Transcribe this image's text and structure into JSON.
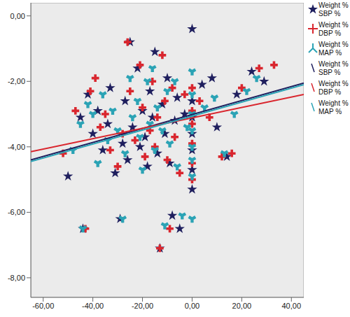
{
  "chart_data": {
    "type": "scatter",
    "grid": false,
    "legend": "right",
    "xlim": [
      -65,
      45
    ],
    "xticks": [
      {
        "value": -60,
        "label": "-60,00"
      },
      {
        "value": -40,
        "label": "-40,00"
      },
      {
        "value": -20,
        "label": "-20,00"
      },
      {
        "value": 0,
        "label": "0,00"
      },
      {
        "value": 20,
        "label": "20,00"
      },
      {
        "value": 40,
        "label": "40,00"
      }
    ],
    "ylim": [
      -8.6,
      0.4
    ],
    "yticks": [
      {
        "value": 0,
        "label": "0,00"
      },
      {
        "value": -2,
        "label": "-2,00"
      },
      {
        "value": -4,
        "label": "-4,00"
      },
      {
        "value": -6,
        "label": "-6,00"
      },
      {
        "value": -8,
        "label": "-8,00"
      }
    ],
    "series": [
      {
        "name": "Weight % SBP %",
        "type": "scatter",
        "marker": "star",
        "color": "#1f1f5e",
        "x": [
          -50,
          -45,
          -44,
          -42,
          -40,
          -38,
          -36,
          -34,
          -33,
          -31,
          -29,
          -28,
          -27,
          -26,
          -25,
          -24,
          -22,
          -21,
          -20,
          -19,
          -18,
          -17,
          -16,
          -15,
          -14,
          -13,
          -12,
          -11,
          -10,
          -9,
          -8,
          -7,
          -6,
          -5,
          -3,
          0,
          0,
          0,
          0,
          0,
          0,
          0,
          4,
          8,
          10,
          14,
          18,
          24,
          29
        ],
        "values": [
          -4.9,
          -3.1,
          -6.5,
          -2.4,
          -3.6,
          -2.9,
          -4.1,
          -3.3,
          -2.2,
          -4.8,
          -6.2,
          -3.9,
          -2.6,
          -4.4,
          -0.8,
          -3.4,
          -1.6,
          -4.0,
          -2.9,
          -3.7,
          -4.6,
          -2.3,
          -3.1,
          -1.1,
          -4.2,
          -7.1,
          -2.7,
          -3.6,
          -1.9,
          -4.5,
          -6.1,
          -3.2,
          -2.5,
          -6.5,
          -3.0,
          -0.4,
          -2.6,
          -3.1,
          -3.6,
          -4.1,
          -4.7,
          -5.3,
          -2.1,
          -1.9,
          -3.4,
          -4.3,
          -2.4,
          -1.7,
          -2.0
        ]
      },
      {
        "name": "Weight % DBP %",
        "type": "scatter",
        "marker": "plus",
        "color": "#d9262e",
        "x": [
          -52,
          -47,
          -43,
          -41,
          -39,
          -37,
          -35,
          -33,
          -30,
          -28,
          -26,
          -25,
          -23,
          -21,
          -20,
          -19,
          -17,
          -16,
          -15,
          -14,
          -13,
          -12,
          -11,
          -10,
          -9,
          -8,
          -7,
          -5,
          -3,
          0,
          0,
          0,
          0,
          0,
          0,
          3,
          7,
          12,
          16,
          20,
          27,
          33
        ],
        "values": [
          -4.2,
          -2.9,
          -6.5,
          -2.3,
          -1.9,
          -3.4,
          -3.0,
          -4.1,
          -4.6,
          -3.6,
          -0.8,
          -2.3,
          -3.8,
          -1.5,
          -2.8,
          -4.3,
          -3.5,
          -2.0,
          -4.0,
          -3.1,
          -7.1,
          -1.2,
          -2.6,
          -4.4,
          -6.5,
          -2.2,
          -3.7,
          -4.8,
          -2.4,
          -2.2,
          -2.9,
          -3.3,
          -3.9,
          -4.5,
          -5.0,
          -2.6,
          -3.1,
          -4.3,
          -4.2,
          -2.2,
          -1.6,
          -1.5
        ]
      },
      {
        "name": "Weight % MAP %",
        "type": "scatter",
        "marker": "wye",
        "color": "#2ba3b5",
        "x": [
          -48,
          -45,
          -44,
          -42,
          -40,
          -38,
          -36,
          -34,
          -32,
          -30,
          -28,
          -27,
          -25,
          -24,
          -22,
          -21,
          -20,
          -18,
          -17,
          -16,
          -15,
          -14,
          -12,
          -11,
          -10,
          -9,
          -7,
          -6,
          -4,
          -2,
          0,
          0,
          0,
          0,
          0,
          0,
          0,
          0,
          5,
          9,
          13,
          17,
          22,
          26
        ],
        "values": [
          -4.1,
          -3.3,
          -6.5,
          -2.7,
          -3.0,
          -4.5,
          -2.4,
          -3.8,
          -2.9,
          -3.5,
          -6.2,
          -4.2,
          -1.9,
          -3.1,
          -2.6,
          -3.7,
          -4.7,
          -2.0,
          -3.3,
          -1.6,
          -4.1,
          -2.8,
          -3.5,
          -6.4,
          -2.3,
          -3.9,
          -2.0,
          -4.6,
          -6.1,
          -3.4,
          -1.7,
          -2.4,
          -3.0,
          -3.5,
          -4.0,
          -4.4,
          -4.9,
          -6.2,
          -2.8,
          -2.5,
          -4.2,
          -3.0,
          -2.3,
          -1.9
        ]
      },
      {
        "name": "Weight % SBP %",
        "type": "line",
        "color": "#1f1f5e",
        "x": [
          -65,
          45
        ],
        "values": [
          -4.4,
          -2.05
        ]
      },
      {
        "name": "Weight % DBP %",
        "type": "line",
        "color": "#d9262e",
        "x": [
          -65,
          45
        ],
        "values": [
          -4.15,
          -2.4
        ]
      },
      {
        "name": "Weight % MAP %",
        "type": "line",
        "color": "#2ba3b5",
        "x": [
          -65,
          45
        ],
        "values": [
          -4.45,
          -2.1
        ]
      }
    ]
  }
}
